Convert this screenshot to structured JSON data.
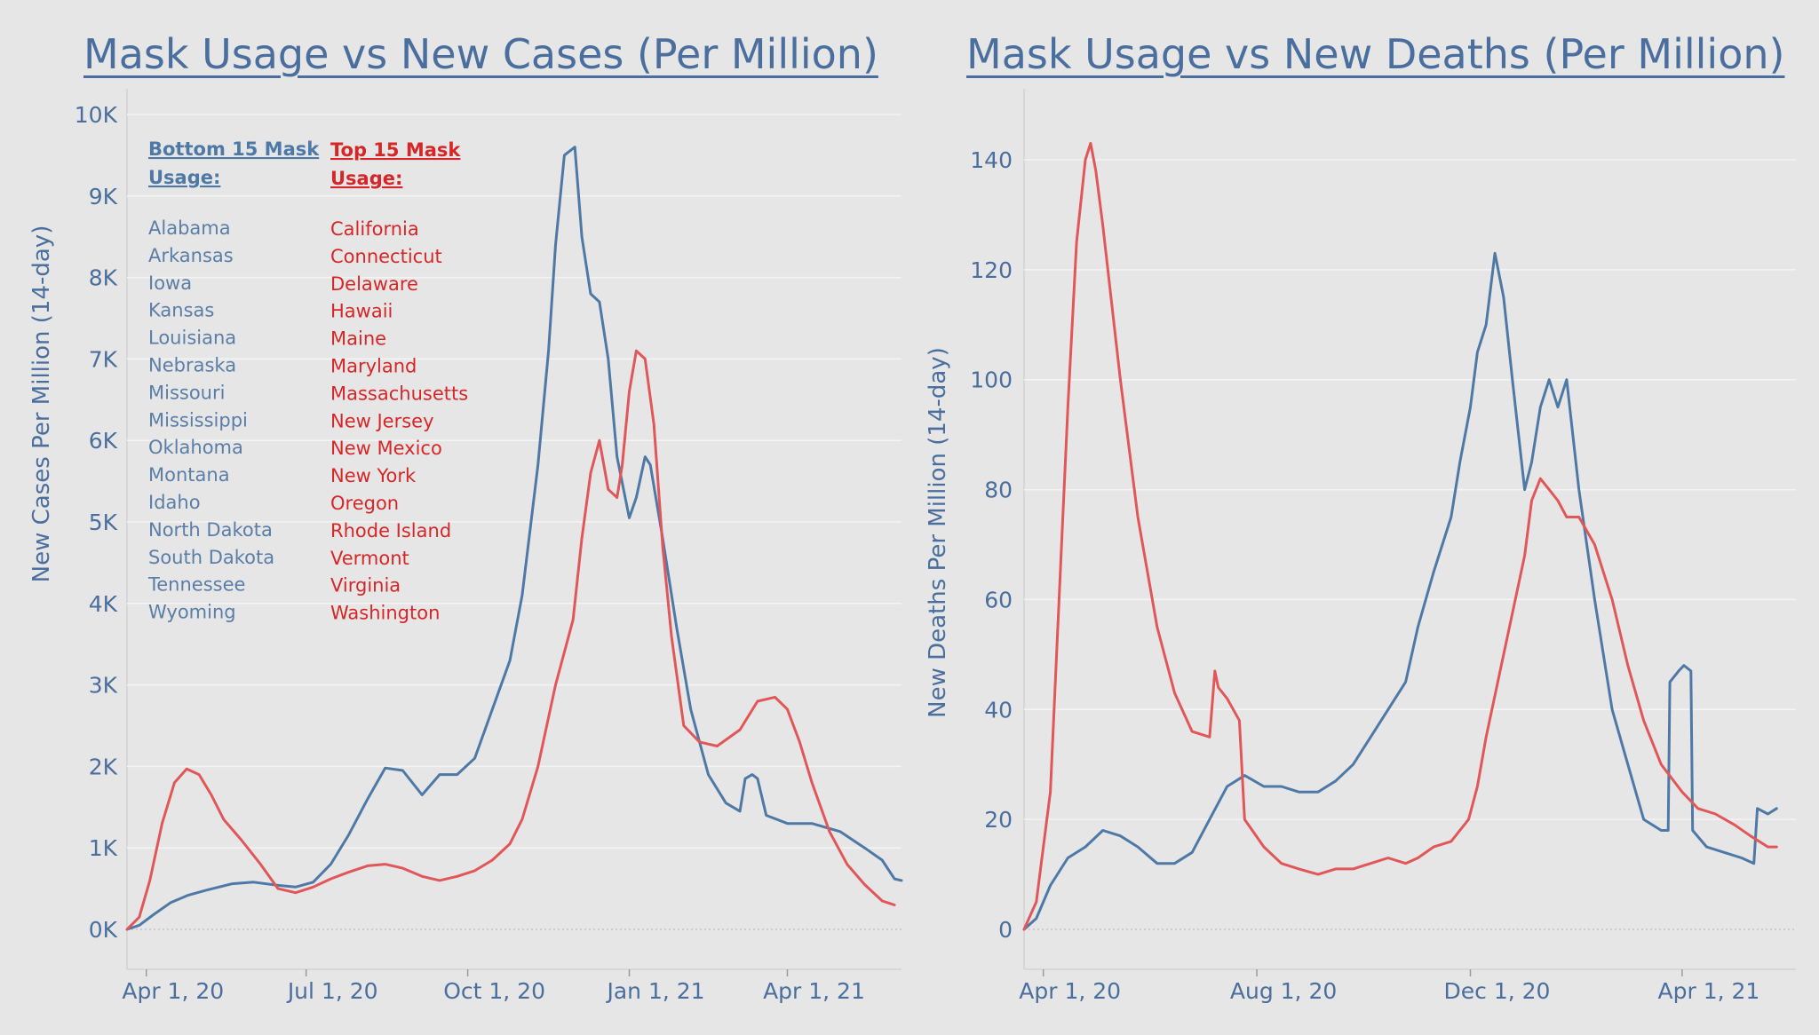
{
  "colors": {
    "background": "#e6e6e6",
    "bottom15": "#4e79a7",
    "top15": "#e15759",
    "text": "#4a6f9e",
    "grid": "#d2d2d2"
  },
  "chart_data": [
    {
      "type": "line",
      "title": "Mask Usage vs New Cases (Per Million)",
      "ylabel": "New Cases Per Million (14-day)",
      "xlabel": "",
      "x_ticks": [
        "Apr 1, 20",
        "Jul 1, 20",
        "Oct 1, 20",
        "Jan 1, 21",
        "Apr 1, 21"
      ],
      "y_ticks": [
        "0K",
        "1K",
        "2K",
        "3K",
        "4K",
        "5K",
        "6K",
        "7K",
        "8K",
        "9K",
        "10K"
      ],
      "ylim": [
        0,
        10000
      ],
      "xlim": [
        "2020-03-21",
        "2021-06-05"
      ],
      "grid": true,
      "legend": {
        "placement": "top-left",
        "bottom_title": "Bottom 15 Mask Usage:",
        "top_title": "Top 15 Mask Usage:",
        "bottom_states": [
          "Alabama",
          "Arkansas",
          "Iowa",
          "Kansas",
          "Louisiana",
          "Nebraska",
          "Missouri",
          "Mississippi",
          "Oklahoma",
          "Montana",
          "Idaho",
          "North Dakota",
          "South Dakota",
          "Tennessee",
          "Wyoming"
        ],
        "top_states": [
          "California",
          "Connecticut",
          "Delaware",
          "Hawaii",
          "Maine",
          "Maryland",
          "Massachusetts",
          "New Jersey",
          "New Mexico",
          "New York",
          "Oregon",
          "Rhode Island",
          "Vermont",
          "Virginia",
          "Washington"
        ]
      },
      "series": [
        {
          "key": "bottom15",
          "color": "#4e79a7",
          "x": [
            "2020-03-21",
            "2020-03-28",
            "2020-04-05",
            "2020-04-15",
            "2020-04-25",
            "2020-05-05",
            "2020-05-20",
            "2020-06-01",
            "2020-06-15",
            "2020-06-25",
            "2020-07-05",
            "2020-07-15",
            "2020-07-25",
            "2020-08-05",
            "2020-08-15",
            "2020-08-25",
            "2020-09-05",
            "2020-09-15",
            "2020-09-25",
            "2020-10-05",
            "2020-10-15",
            "2020-10-25",
            "2020-11-01",
            "2020-11-10",
            "2020-11-16",
            "2020-11-20",
            "2020-11-25",
            "2020-12-01",
            "2020-12-05",
            "2020-12-10",
            "2020-12-15",
            "2020-12-20",
            "2020-12-25",
            "2021-01-01",
            "2021-01-05",
            "2021-01-10",
            "2021-01-13",
            "2021-01-20",
            "2021-01-28",
            "2021-02-05",
            "2021-02-15",
            "2021-02-25",
            "2021-03-05",
            "2021-03-08",
            "2021-03-12",
            "2021-03-15",
            "2021-03-20",
            "2021-04-01",
            "2021-04-15",
            "2021-05-01",
            "2021-05-15",
            "2021-05-25",
            "2021-06-01",
            "2021-06-05"
          ],
          "y": [
            0,
            50,
            180,
            330,
            420,
            480,
            560,
            580,
            540,
            520,
            580,
            800,
            1150,
            1600,
            1980,
            1950,
            1650,
            1900,
            1900,
            2100,
            2700,
            3300,
            4100,
            5700,
            7100,
            8400,
            9500,
            9600,
            8500,
            7800,
            7700,
            7000,
            5800,
            5050,
            5300,
            5800,
            5700,
            4800,
            3700,
            2700,
            1900,
            1550,
            1450,
            1850,
            1900,
            1850,
            1400,
            1300,
            1300,
            1200,
            1000,
            850,
            620,
            600
          ]
        },
        {
          "key": "top15",
          "color": "#e15759",
          "x": [
            "2020-03-21",
            "2020-03-28",
            "2020-04-03",
            "2020-04-10",
            "2020-04-17",
            "2020-04-24",
            "2020-05-01",
            "2020-05-08",
            "2020-05-15",
            "2020-05-25",
            "2020-06-05",
            "2020-06-15",
            "2020-06-25",
            "2020-07-05",
            "2020-07-15",
            "2020-07-25",
            "2020-08-05",
            "2020-08-15",
            "2020-08-25",
            "2020-09-05",
            "2020-09-15",
            "2020-09-25",
            "2020-10-05",
            "2020-10-15",
            "2020-10-25",
            "2020-11-01",
            "2020-11-10",
            "2020-11-20",
            "2020-11-30",
            "2020-12-05",
            "2020-12-10",
            "2020-12-15",
            "2020-12-20",
            "2020-12-25",
            "2020-12-28",
            "2021-01-01",
            "2021-01-05",
            "2021-01-10",
            "2021-01-15",
            "2021-01-20",
            "2021-01-25",
            "2021-02-01",
            "2021-02-10",
            "2021-02-20",
            "2021-03-05",
            "2021-03-15",
            "2021-03-25",
            "2021-04-01",
            "2021-04-08",
            "2021-04-15",
            "2021-04-25",
            "2021-05-05",
            "2021-05-15",
            "2021-05-25",
            "2021-06-01"
          ],
          "y": [
            0,
            150,
            600,
            1300,
            1800,
            1970,
            1900,
            1650,
            1350,
            1100,
            800,
            500,
            450,
            520,
            620,
            700,
            780,
            800,
            750,
            650,
            600,
            650,
            720,
            850,
            1050,
            1350,
            2000,
            3000,
            3800,
            4800,
            5600,
            6000,
            5400,
            5300,
            5700,
            6600,
            7100,
            7000,
            6200,
            4700,
            3600,
            2500,
            2300,
            2250,
            2450,
            2800,
            2850,
            2700,
            2300,
            1800,
            1200,
            800,
            550,
            350,
            300
          ]
        }
      ]
    },
    {
      "type": "line",
      "title": "Mask Usage vs New Deaths (Per Million)",
      "ylabel": "New Deaths Per Million (14-day)",
      "xlabel": "",
      "x_ticks": [
        "Apr 1, 20",
        "Aug 1, 20",
        "Dec 1, 20",
        "Apr 1, 21"
      ],
      "y_ticks": [
        "0",
        "20",
        "40",
        "60",
        "80",
        "100",
        "120",
        "140"
      ],
      "ylim": [
        0,
        140
      ],
      "xlim": [
        "2020-03-21",
        "2021-06-05"
      ],
      "grid": true,
      "series": [
        {
          "key": "bottom15",
          "color": "#4e79a7",
          "x": [
            "2020-03-21",
            "2020-03-28",
            "2020-04-05",
            "2020-04-15",
            "2020-04-25",
            "2020-05-05",
            "2020-05-15",
            "2020-05-25",
            "2020-06-05",
            "2020-06-15",
            "2020-06-25",
            "2020-07-05",
            "2020-07-15",
            "2020-07-25",
            "2020-08-05",
            "2020-08-15",
            "2020-08-25",
            "2020-09-05",
            "2020-09-15",
            "2020-09-25",
            "2020-10-05",
            "2020-10-15",
            "2020-10-25",
            "2020-11-01",
            "2020-11-10",
            "2020-11-20",
            "2020-11-25",
            "2020-12-01",
            "2020-12-05",
            "2020-12-10",
            "2020-12-15",
            "2020-12-20",
            "2020-12-25",
            "2021-01-01",
            "2021-01-05",
            "2021-01-10",
            "2021-01-15",
            "2021-01-20",
            "2021-01-25",
            "2021-02-01",
            "2021-02-10",
            "2021-02-20",
            "2021-03-01",
            "2021-03-10",
            "2021-03-20",
            "2021-03-24",
            "2021-03-25",
            "2021-03-30",
            "2021-04-02",
            "2021-04-06",
            "2021-04-07",
            "2021-04-15",
            "2021-04-25",
            "2021-05-05",
            "2021-05-12",
            "2021-05-14",
            "2021-05-20",
            "2021-05-25"
          ],
          "y": [
            0,
            2,
            8,
            13,
            15,
            18,
            17,
            15,
            12,
            12,
            14,
            20,
            26,
            28,
            26,
            26,
            25,
            25,
            27,
            30,
            35,
            40,
            45,
            55,
            65,
            75,
            85,
            95,
            105,
            110,
            123,
            115,
            100,
            80,
            85,
            95,
            100,
            95,
            100,
            80,
            60,
            40,
            30,
            20,
            18,
            18,
            45,
            47,
            48,
            47,
            18,
            15,
            14,
            13,
            12,
            22,
            21,
            22
          ]
        },
        {
          "key": "top15",
          "color": "#e15759",
          "x": [
            "2020-03-21",
            "2020-03-28",
            "2020-04-05",
            "2020-04-10",
            "2020-04-15",
            "2020-04-20",
            "2020-04-25",
            "2020-04-28",
            "2020-05-01",
            "2020-05-05",
            "2020-05-15",
            "2020-05-25",
            "2020-06-05",
            "2020-06-15",
            "2020-06-25",
            "2020-07-05",
            "2020-07-08",
            "2020-07-10",
            "2020-07-15",
            "2020-07-22",
            "2020-07-25",
            "2020-08-05",
            "2020-08-15",
            "2020-08-25",
            "2020-09-05",
            "2020-09-15",
            "2020-09-25",
            "2020-10-05",
            "2020-10-15",
            "2020-10-25",
            "2020-11-01",
            "2020-11-10",
            "2020-11-20",
            "2020-11-30",
            "2020-12-05",
            "2020-12-10",
            "2020-12-20",
            "2021-01-01",
            "2021-01-05",
            "2021-01-10",
            "2021-01-15",
            "2021-01-20",
            "2021-01-25",
            "2021-02-01",
            "2021-02-10",
            "2021-02-20",
            "2021-03-01",
            "2021-03-10",
            "2021-03-20",
            "2021-04-01",
            "2021-04-10",
            "2021-04-20",
            "2021-05-01",
            "2021-05-10",
            "2021-05-20",
            "2021-05-25"
          ],
          "y": [
            0,
            5,
            25,
            60,
            95,
            125,
            140,
            143,
            138,
            128,
            100,
            75,
            55,
            43,
            36,
            35,
            47,
            44,
            42,
            38,
            20,
            15,
            12,
            11,
            10,
            11,
            11,
            12,
            13,
            12,
            13,
            15,
            16,
            20,
            26,
            35,
            50,
            68,
            78,
            82,
            80,
            78,
            75,
            75,
            70,
            60,
            48,
            38,
            30,
            25,
            22,
            21,
            19,
            17,
            15,
            15
          ]
        }
      ]
    }
  ]
}
